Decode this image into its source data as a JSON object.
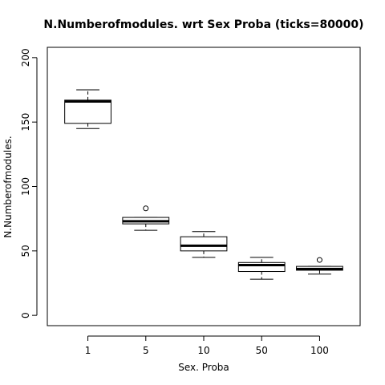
{
  "chart_data": {
    "type": "boxplot",
    "title": "N.Numberofmodules. wrt Sex Proba (ticks=80000)",
    "xlabel": "Sex. Proba",
    "ylabel": "N.Numberofmodules.",
    "categories": [
      "1",
      "5",
      "10",
      "50",
      "100"
    ],
    "ylim": [
      -8,
      208
    ],
    "yticks": [
      0,
      50,
      100,
      150,
      200
    ],
    "grid": false,
    "legend": "none",
    "boxes": [
      {
        "category": "1",
        "whisker_low": 145,
        "q1": 149,
        "median": 166,
        "q3": 167,
        "whisker_high": 175,
        "outliers": []
      },
      {
        "category": "5",
        "whisker_low": 66,
        "q1": 71,
        "median": 73,
        "q3": 76,
        "whisker_high": 76,
        "outliers": [
          83
        ]
      },
      {
        "category": "10",
        "whisker_low": 45,
        "q1": 50,
        "median": 54,
        "q3": 61,
        "whisker_high": 65,
        "outliers": []
      },
      {
        "category": "50",
        "whisker_low": 28,
        "q1": 34,
        "median": 39,
        "q3": 41,
        "whisker_high": 45,
        "outliers": []
      },
      {
        "category": "100",
        "whisker_low": 32,
        "q1": 35,
        "median": 36,
        "q3": 38,
        "whisker_high": 38,
        "outliers": [
          43
        ]
      }
    ]
  }
}
